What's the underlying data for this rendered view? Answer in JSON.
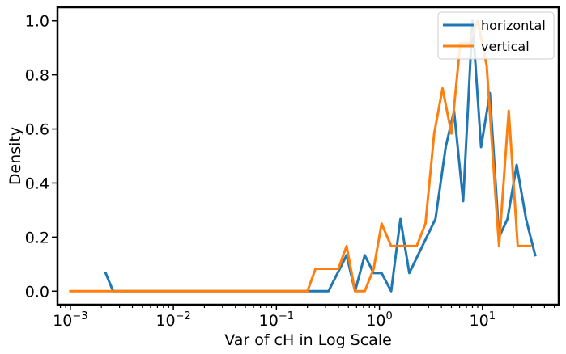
{
  "chart_data": {
    "type": "line",
    "title": "",
    "xlabel": "Var of cH in Log Scale",
    "ylabel": "Density",
    "xscale": "log",
    "xlim": [
      0.00075,
      55
    ],
    "ylim": [
      -0.05,
      1.05
    ],
    "x_ticks": [
      {
        "value": 0.001,
        "base": "10",
        "exp": "−3"
      },
      {
        "value": 0.01,
        "base": "10",
        "exp": "−2"
      },
      {
        "value": 0.1,
        "base": "10",
        "exp": "−1"
      },
      {
        "value": 1,
        "base": "10",
        "exp": "0"
      },
      {
        "value": 10,
        "base": "10",
        "exp": "1"
      }
    ],
    "y_ticks": [
      "0.0",
      "0.2",
      "0.4",
      "0.6",
      "0.8",
      "1.0"
    ],
    "grid": false,
    "legend": "top-right",
    "series": [
      {
        "name": "horizontal",
        "color": "#1f77b4",
        "x": [
          0.0022,
          0.0026,
          0.2,
          0.32,
          0.48,
          0.58,
          0.72,
          0.88,
          1.05,
          1.3,
          1.6,
          1.95,
          3.5,
          4.4,
          5.3,
          6.5,
          8.0,
          9.7,
          11.8,
          14.5,
          17.5,
          21.5,
          26.5,
          32.5
        ],
        "y": [
          0.067,
          0.0,
          0.0,
          0.0,
          0.133,
          0.0,
          0.133,
          0.067,
          0.067,
          0.0,
          0.267,
          0.067,
          0.267,
          0.533,
          0.667,
          0.333,
          1.0,
          0.533,
          0.733,
          0.2,
          0.267,
          0.467,
          0.267,
          0.133
        ]
      },
      {
        "name": "vertical",
        "color": "#ff7f0e",
        "x": [
          0.001,
          0.2,
          0.24,
          0.4,
          0.48,
          0.58,
          0.72,
          0.88,
          1.05,
          1.3,
          1.6,
          2.3,
          2.8,
          3.4,
          4.1,
          5.0,
          6.1,
          7.4,
          9.0,
          11.0,
          13.5,
          14.5,
          18.0,
          22.0,
          29.0
        ],
        "y": [
          0.0,
          0.0,
          0.083,
          0.083,
          0.167,
          0.0,
          0.0,
          0.083,
          0.25,
          0.167,
          0.167,
          0.167,
          0.25,
          0.583,
          0.75,
          0.583,
          0.917,
          0.917,
          1.0,
          0.833,
          0.333,
          0.167,
          0.667,
          0.167,
          0.167
        ]
      }
    ]
  }
}
